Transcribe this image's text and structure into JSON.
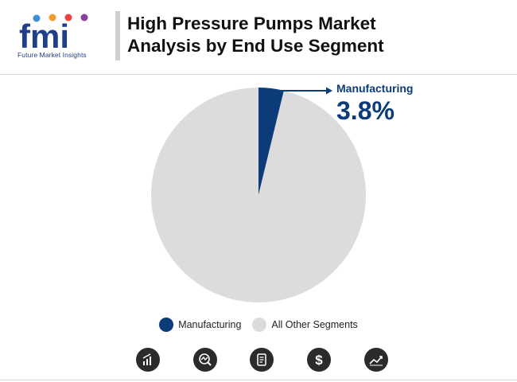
{
  "header": {
    "title_line1": "High Pressure Pumps Market",
    "title_line2": "Analysis by End Use Segment",
    "logo_text": "fmi",
    "logo_caption": "Future Market Insights"
  },
  "callout": {
    "label": "Manufacturing",
    "value": "3.8%"
  },
  "legend": [
    {
      "label": "Manufacturing",
      "color": "#0c3b7a"
    },
    {
      "label": "All Other Segments",
      "color": "#dcdcdc"
    }
  ],
  "icons": [
    "bar-chart-icon",
    "analytics-icon",
    "report-icon",
    "dollar-icon",
    "trend-icon"
  ],
  "colors": {
    "accent": "#0c3b7a",
    "other": "#dcdcdc",
    "logo_blue": "#1f3f88",
    "icon_bg": "#2b2b2b"
  },
  "chart_data": {
    "type": "pie",
    "categories": [
      "Manufacturing",
      "All Other Segments"
    ],
    "values": [
      3.8,
      96.2
    ],
    "colors": [
      "#0c3b7a",
      "#dcdcdc"
    ],
    "legend_position": "bottom",
    "annotation": {
      "category": "Manufacturing",
      "text": "3.8%"
    }
  }
}
